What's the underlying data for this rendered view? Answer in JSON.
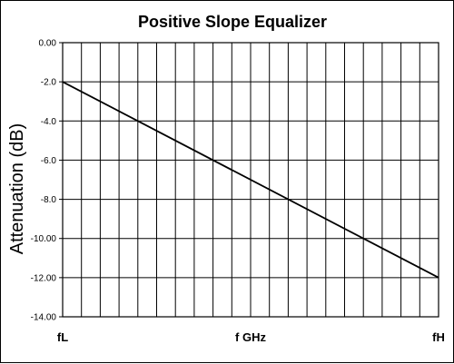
{
  "chart_data": {
    "type": "line",
    "title": "Positive Slope Equalizer",
    "xlabel": "",
    "ylabel": "Attenuation (dB)",
    "x_tick_labels": [
      "fL",
      "f GHz",
      "fH"
    ],
    "y_tick_labels": [
      "0.00",
      "-2.0",
      "-4.0",
      "-6.0",
      "-8.0",
      "-10.00",
      "-12.00",
      "-14.00"
    ],
    "ylim": [
      -14,
      0
    ],
    "y_ticks": [
      0,
      -2,
      -4,
      -6,
      -8,
      -10,
      -12,
      -14
    ],
    "x_ticks": [
      0,
      0.5,
      1
    ],
    "xlim": [
      0,
      1
    ],
    "x_gridlines": 20,
    "grid": true,
    "legend": "none",
    "line_color": "#000000",
    "series": [
      {
        "x": [
          0,
          1
        ],
        "values": [
          -2,
          -12
        ]
      }
    ]
  }
}
